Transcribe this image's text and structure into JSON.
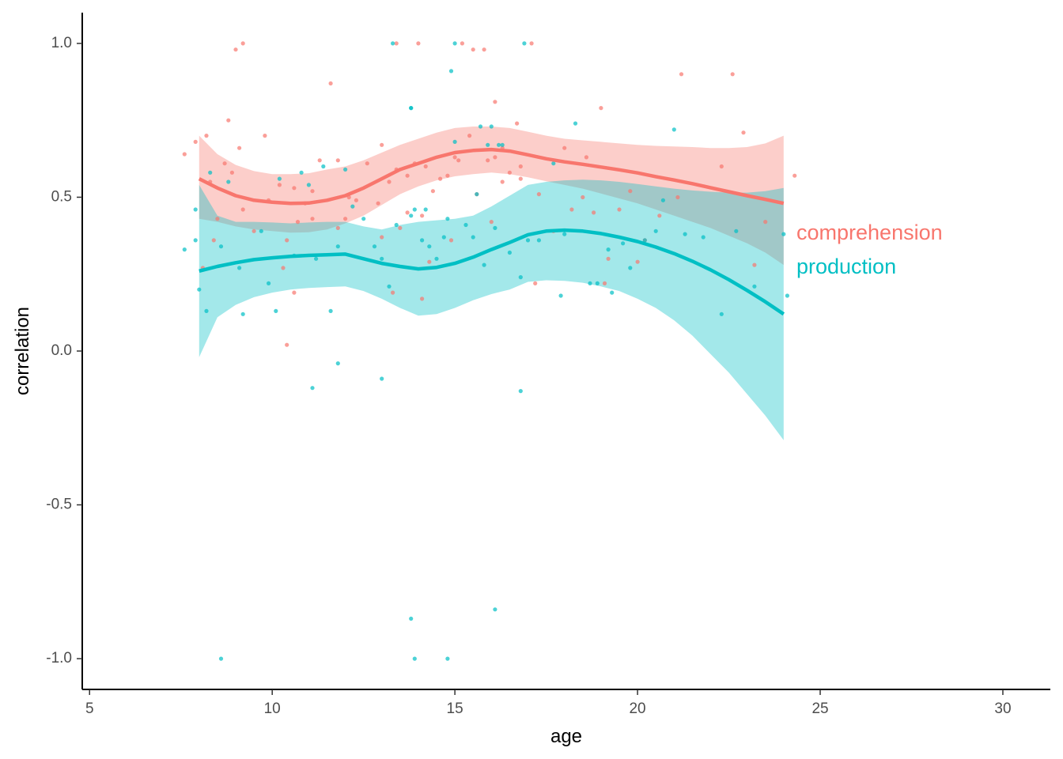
{
  "chart_data": {
    "type": "scatter",
    "xlabel": "age",
    "ylabel": "correlation",
    "xlim": [
      4.8,
      31.3
    ],
    "ylim": [
      -1.1,
      1.1
    ],
    "x_ticks": [
      5,
      10,
      15,
      20,
      25,
      30
    ],
    "x_tick_labels": [
      "5",
      "10",
      "15",
      "20",
      "25",
      "30"
    ],
    "y_ticks": [
      1.0,
      0.5,
      0.0,
      -0.5,
      -1.0
    ],
    "y_tick_labels": [
      "1.0",
      "0.5",
      "0.0",
      "-0.5",
      "-1.0"
    ],
    "grid": false,
    "legend": "direct labels at the right end of each smooth",
    "series": [
      {
        "name": "comprehension",
        "color": "#f8766d",
        "ribbon_color": "#f8766d",
        "label_at": [
          24.35,
          0.38
        ],
        "smooth": {
          "x": [
            8,
            8.5,
            9,
            9.5,
            10,
            10.5,
            11,
            11.5,
            12,
            12.5,
            13,
            13.5,
            14,
            14.5,
            15,
            15.5,
            16,
            16.5,
            17,
            17.5,
            18,
            18.5,
            19,
            19.5,
            20,
            20.5,
            21,
            21.5,
            22,
            22.5,
            23,
            23.5,
            24
          ],
          "y": [
            0.56,
            0.53,
            0.505,
            0.49,
            0.484,
            0.48,
            0.481,
            0.49,
            0.505,
            0.53,
            0.56,
            0.59,
            0.61,
            0.63,
            0.645,
            0.652,
            0.655,
            0.65,
            0.638,
            0.625,
            0.615,
            0.607,
            0.598,
            0.589,
            0.579,
            0.567,
            0.556,
            0.544,
            0.531,
            0.518,
            0.505,
            0.493,
            0.48
          ],
          "lower": [
            0.43,
            0.42,
            0.405,
            0.395,
            0.39,
            0.385,
            0.386,
            0.395,
            0.415,
            0.44,
            0.475,
            0.51,
            0.535,
            0.555,
            0.568,
            0.575,
            0.58,
            0.575,
            0.565,
            0.552,
            0.54,
            0.528,
            0.512,
            0.496,
            0.48,
            0.46,
            0.44,
            0.42,
            0.4,
            0.375,
            0.35,
            0.32,
            0.28
          ],
          "upper": [
            0.7,
            0.64,
            0.605,
            0.585,
            0.575,
            0.575,
            0.578,
            0.59,
            0.6,
            0.62,
            0.645,
            0.67,
            0.69,
            0.71,
            0.725,
            0.73,
            0.73,
            0.725,
            0.713,
            0.7,
            0.69,
            0.685,
            0.68,
            0.675,
            0.67,
            0.667,
            0.665,
            0.663,
            0.66,
            0.66,
            0.663,
            0.675,
            0.7
          ]
        },
        "points": {
          "x": [
            7.6,
            7.9,
            8.2,
            8.3,
            8.5,
            8.7,
            8.8,
            8.9,
            9.1,
            9.2,
            9.5,
            9.8,
            9.9,
            10.2,
            10.4,
            10.6,
            10.7,
            10.9,
            11.1,
            11.3,
            11.6,
            11.8,
            12.0,
            12.3,
            12.6,
            12.9,
            13.0,
            13.2,
            13.4,
            13.7,
            13.9,
            14.1,
            14.2,
            14.4,
            14.6,
            14.8,
            15.0,
            15.1,
            15.4,
            15.6,
            15.8,
            16.0,
            16.1,
            16.3,
            16.5,
            16.7,
            16.8,
            17.1,
            17.3,
            17.7,
            18.0,
            18.2,
            18.5,
            18.8,
            19.0,
            19.2,
            19.5,
            19.8,
            20.2,
            20.6,
            21.1,
            21.2,
            22.3,
            22.6,
            22.9,
            23.2,
            23.5,
            24.3,
            8.1,
            8.4,
            9.0,
            9.2,
            10.3,
            10.4,
            10.6,
            11.1,
            11.8,
            12.1,
            13.0,
            13.3,
            13.4,
            14.0,
            14.1,
            13.5,
            13.7,
            14.3,
            14.9,
            15.2,
            15.5,
            16.3,
            16.8,
            17.2,
            15.9,
            16.1,
            18.6,
            19.1,
            20.0
          ],
          "y": [
            0.64,
            0.68,
            0.7,
            0.55,
            0.43,
            0.61,
            0.75,
            0.58,
            0.66,
            0.46,
            0.39,
            0.7,
            0.49,
            0.54,
            0.36,
            0.53,
            0.42,
            0.48,
            0.52,
            0.62,
            0.87,
            0.62,
            0.43,
            0.49,
            0.61,
            0.48,
            0.67,
            0.55,
            0.59,
            0.57,
            0.61,
            0.44,
            0.6,
            0.52,
            0.56,
            0.57,
            0.63,
            0.62,
            0.7,
            0.51,
            0.98,
            0.42,
            0.63,
            0.55,
            0.58,
            0.74,
            0.56,
            1.0,
            0.51,
            0.39,
            0.66,
            0.46,
            0.5,
            0.45,
            0.79,
            0.3,
            0.46,
            0.52,
            0.36,
            0.44,
            0.5,
            0.9,
            0.6,
            0.9,
            0.71,
            0.28,
            0.42,
            0.57,
            0.27,
            0.36,
            0.98,
            1.0,
            0.27,
            0.02,
            0.19,
            0.43,
            0.4,
            0.5,
            0.37,
            0.19,
            1.0,
            1.0,
            0.17,
            0.4,
            0.45,
            0.29,
            0.36,
            1.0,
            0.98,
            0.66,
            0.6,
            0.22,
            0.62,
            0.81,
            0.63,
            0.22,
            0.29
          ]
        }
      },
      {
        "name": "production",
        "color": "#00bfc4",
        "ribbon_color": "#00bfc4",
        "label_at": [
          24.35,
          0.27
        ],
        "smooth": {
          "x": [
            8,
            8.5,
            9,
            9.5,
            10,
            10.5,
            11,
            11.5,
            12,
            12.5,
            13,
            13.5,
            14,
            14.5,
            15,
            15.5,
            16,
            16.5,
            17,
            17.5,
            18,
            18.5,
            19,
            19.5,
            20,
            20.5,
            21,
            21.5,
            22,
            22.5,
            23,
            23.5,
            24
          ],
          "y": [
            0.26,
            0.275,
            0.287,
            0.297,
            0.303,
            0.308,
            0.311,
            0.313,
            0.315,
            0.3,
            0.285,
            0.275,
            0.267,
            0.272,
            0.285,
            0.305,
            0.33,
            0.353,
            0.378,
            0.39,
            0.393,
            0.39,
            0.382,
            0.37,
            0.356,
            0.338,
            0.317,
            0.292,
            0.264,
            0.232,
            0.197,
            0.16,
            0.12
          ],
          "lower": [
            -0.02,
            0.11,
            0.15,
            0.175,
            0.19,
            0.2,
            0.205,
            0.208,
            0.21,
            0.195,
            0.17,
            0.14,
            0.115,
            0.12,
            0.14,
            0.165,
            0.185,
            0.2,
            0.225,
            0.23,
            0.228,
            0.222,
            0.21,
            0.195,
            0.17,
            0.14,
            0.1,
            0.05,
            -0.01,
            -0.07,
            -0.14,
            -0.21,
            -0.29
          ],
          "upper": [
            0.54,
            0.44,
            0.42,
            0.42,
            0.418,
            0.415,
            0.418,
            0.42,
            0.42,
            0.405,
            0.395,
            0.41,
            0.42,
            0.425,
            0.43,
            0.44,
            0.47,
            0.505,
            0.54,
            0.55,
            0.555,
            0.557,
            0.555,
            0.55,
            0.543,
            0.535,
            0.528,
            0.522,
            0.518,
            0.515,
            0.515,
            0.52,
            0.53
          ]
        },
        "points": {
          "x": [
            7.6,
            7.9,
            7.9,
            8.0,
            8.2,
            8.3,
            8.6,
            8.8,
            9.1,
            9.2,
            9.7,
            9.9,
            10.1,
            10.2,
            10.6,
            10.8,
            11.0,
            11.2,
            11.4,
            11.6,
            11.8,
            12.0,
            12.2,
            12.5,
            12.8,
            13.0,
            13.2,
            13.4,
            13.8,
            13.9,
            14.1,
            14.3,
            14.5,
            14.8,
            15.0,
            15.3,
            15.5,
            15.8,
            16.0,
            16.1,
            16.3,
            16.5,
            16.8,
            17.0,
            17.3,
            17.7,
            18.0,
            18.3,
            18.7,
            19.2,
            19.6,
            20.2,
            20.5,
            21.0,
            21.3,
            21.8,
            22.3,
            22.7,
            23.2,
            24.0,
            24.1,
            8.6,
            11.1,
            11.8,
            13.0,
            13.8,
            13.9,
            14.8,
            16.1,
            16.8,
            13.3,
            13.8,
            15.0,
            14.9,
            16.9,
            15.7,
            15.9,
            16.2,
            17.9,
            18.9,
            19.8,
            20.7,
            19.3,
            13.8,
            14.2,
            14.7,
            15.6
          ],
          "y": [
            0.33,
            0.46,
            0.36,
            0.2,
            0.13,
            0.58,
            0.34,
            0.55,
            0.27,
            0.12,
            0.39,
            0.22,
            0.13,
            0.56,
            0.31,
            0.58,
            0.54,
            0.3,
            0.6,
            0.13,
            0.34,
            0.59,
            0.47,
            0.43,
            0.34,
            0.3,
            0.21,
            0.41,
            0.79,
            0.46,
            0.36,
            0.34,
            0.3,
            0.43,
            0.68,
            0.41,
            0.37,
            0.28,
            0.73,
            0.4,
            0.67,
            0.32,
            0.24,
            0.36,
            0.36,
            0.61,
            0.38,
            0.74,
            0.22,
            0.33,
            0.35,
            0.36,
            0.39,
            0.72,
            0.38,
            0.37,
            0.12,
            0.39,
            0.21,
            0.38,
            0.18,
            -1.0,
            -0.12,
            -0.04,
            -0.09,
            -0.87,
            -1.0,
            -1.0,
            -0.84,
            -0.13,
            1.0,
            0.79,
            1.0,
            0.91,
            1.0,
            0.73,
            0.67,
            0.67,
            0.18,
            0.22,
            0.27,
            0.49,
            0.19,
            0.44,
            0.46,
            0.37,
            0.51
          ]
        }
      }
    ]
  }
}
